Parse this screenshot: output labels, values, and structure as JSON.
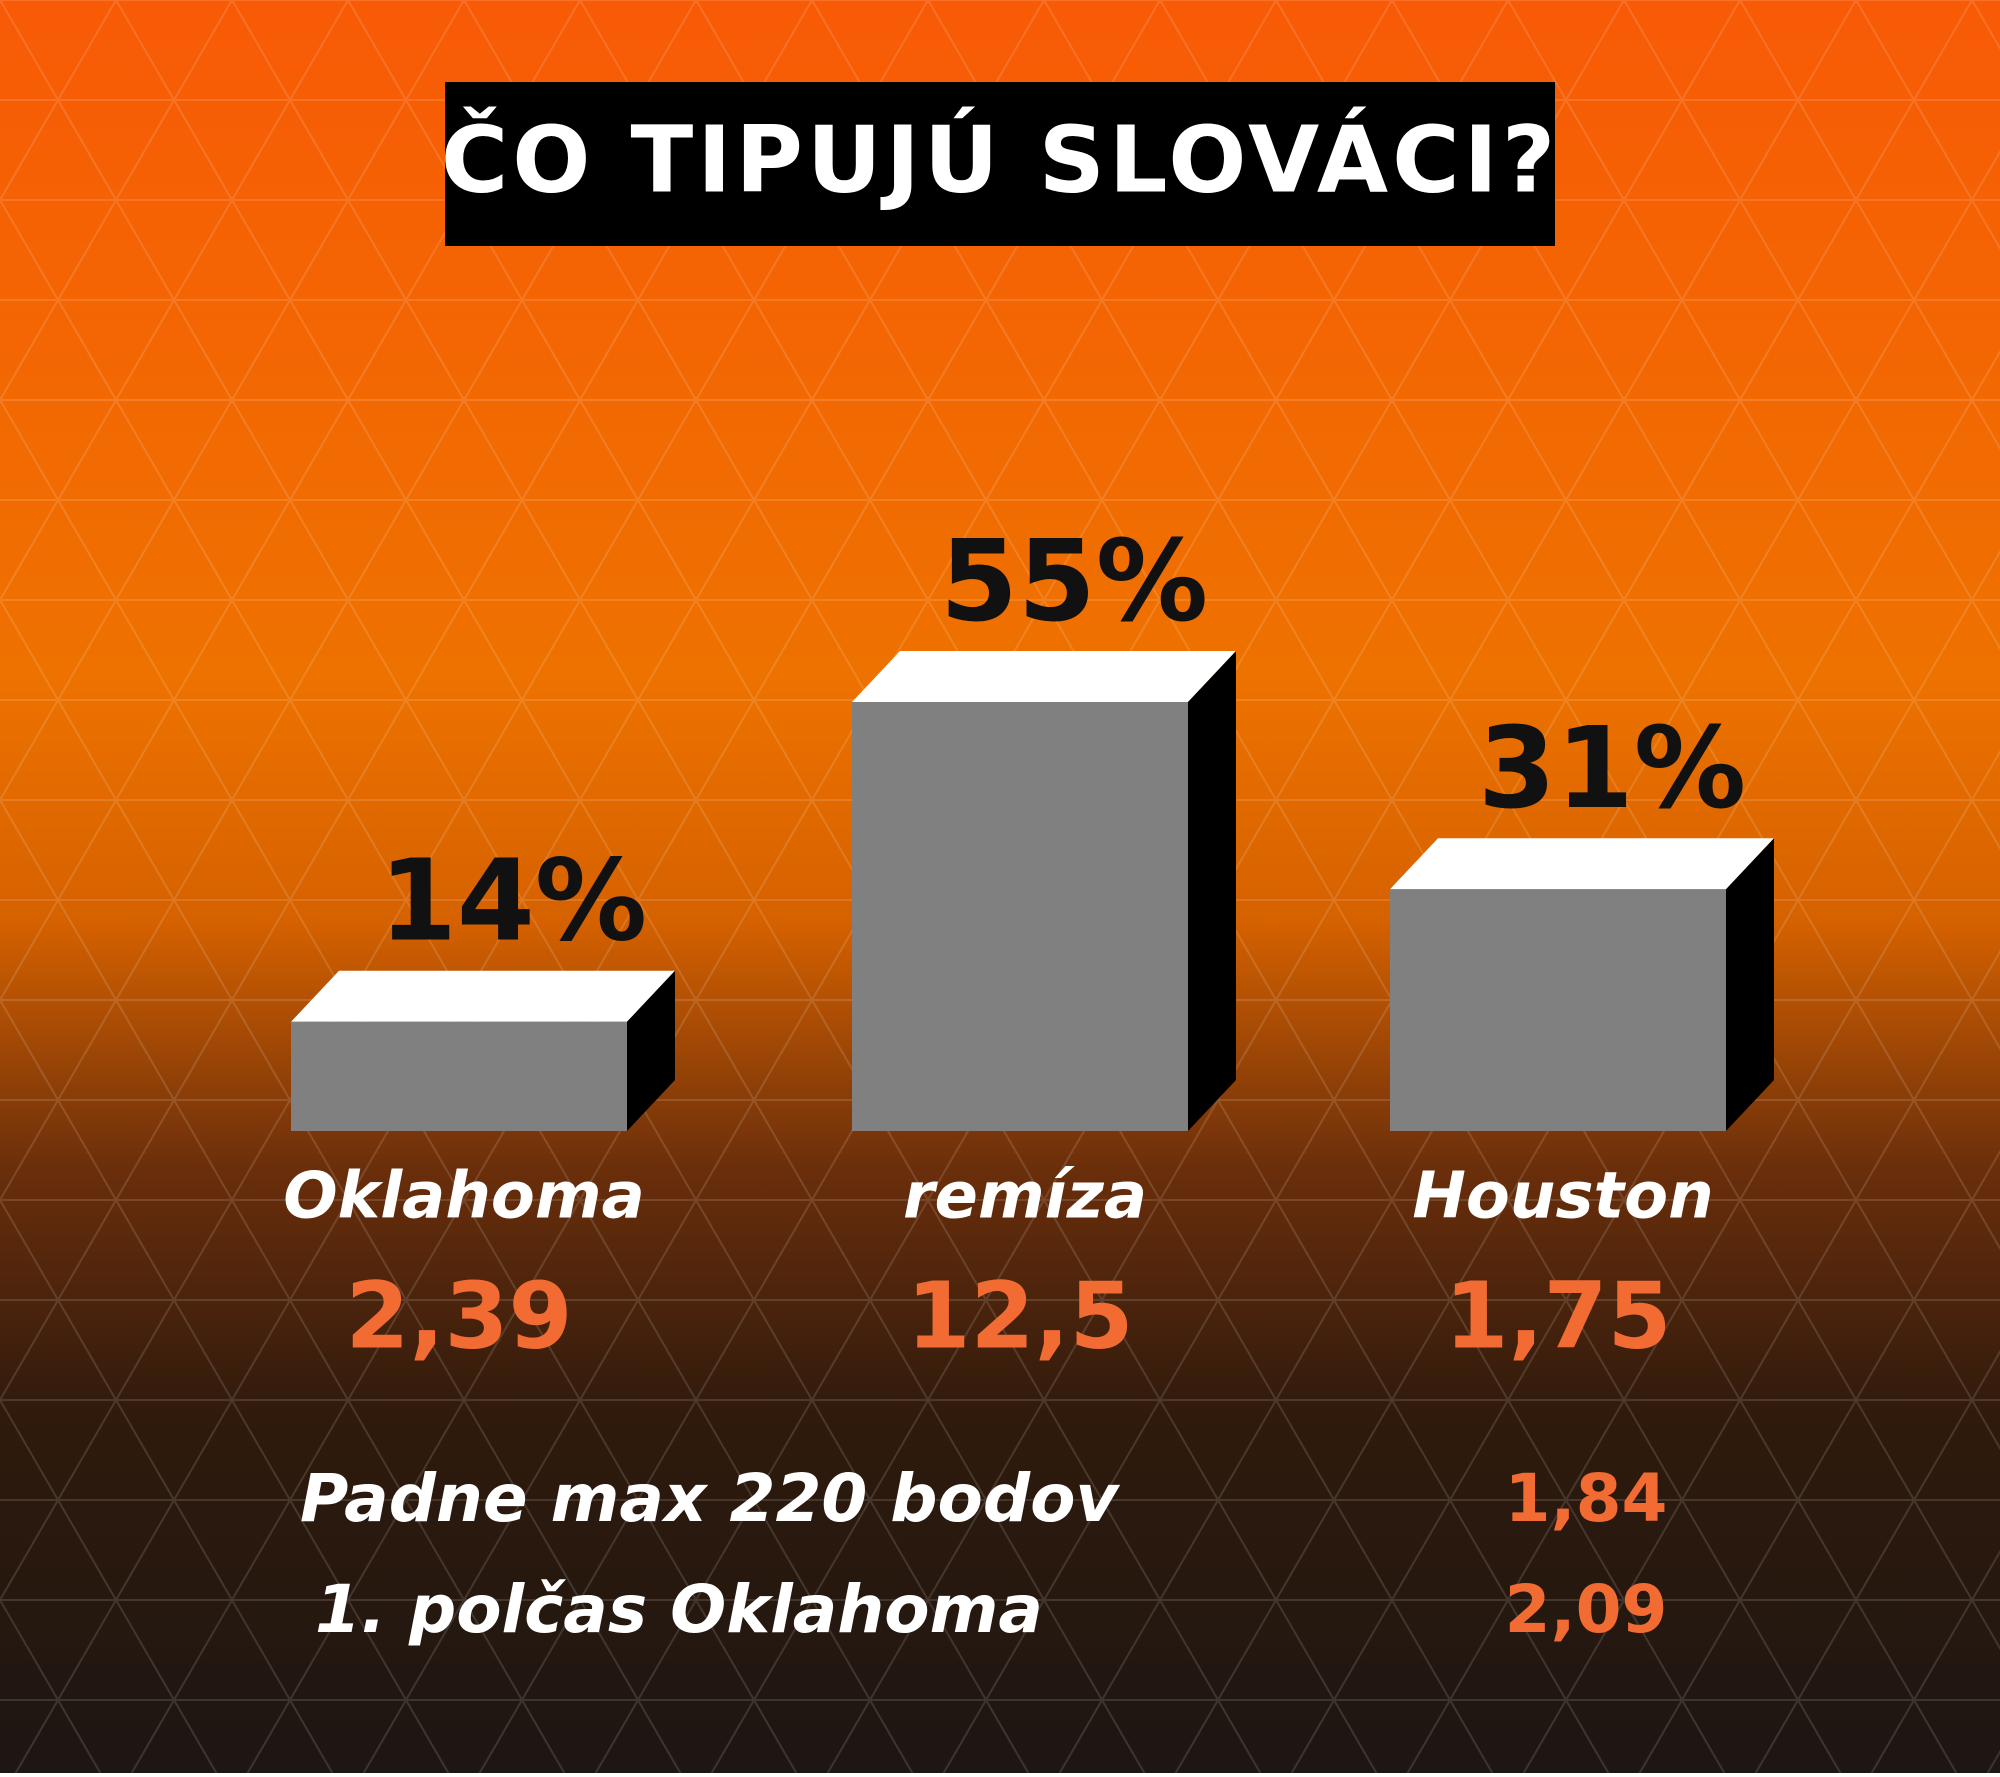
{
  "chart_data": {
    "type": "bar3d",
    "title": "ČO TIPUJÚ SLOVÁCI?",
    "categories": [
      "Oklahoma",
      "remíza",
      "Houston"
    ],
    "values": [
      14,
      55,
      31
    ],
    "value_labels": [
      "14%",
      "55%",
      "31%"
    ],
    "odds": [
      "2,39",
      "12,5",
      "1,75"
    ],
    "colors": {
      "front": "#808080",
      "top": "#ffffff",
      "side": "#000000"
    }
  },
  "extra_bets": [
    {
      "label": "Padne max 220 bodov",
      "odds": "1,84"
    },
    {
      "label": "1. polčas Oklahoma",
      "odds": "2,09"
    }
  ]
}
